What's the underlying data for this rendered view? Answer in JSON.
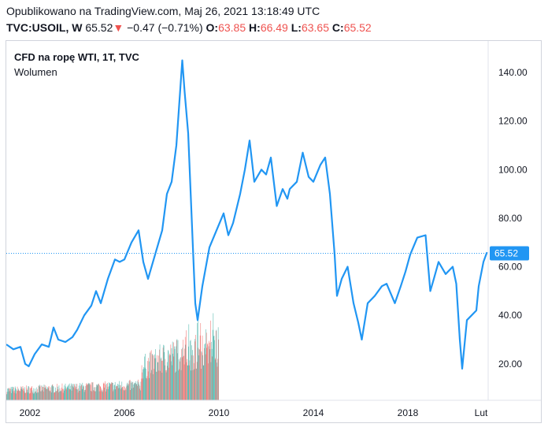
{
  "header": {
    "published_label": "Opublikowano na TradingView.com, Maj 26, 2021 13:18:49 UTC",
    "symbol": "TVC:USOIL, W",
    "last": "65.52",
    "down_arrow": "▼",
    "change": "−0.47 (−0.71%)",
    "o_label": "O:",
    "o_value": "63.85",
    "h_label": "H:",
    "h_value": "66.49",
    "l_label": "L:",
    "l_value": "63.65",
    "c_label": "C:",
    "c_value": "65.52"
  },
  "legend": {
    "title": "CFD na ropę WTI, 1T, TVC",
    "volume_label": "Wolumen"
  },
  "colors": {
    "line": "#2196f3",
    "vol_up": "#26a69a",
    "vol_down": "#ef5350",
    "last_price_bg": "#2196f3",
    "negative": "#ef5350"
  },
  "chart_data": {
    "type": "line",
    "x_tick_labels": [
      "2002",
      "2006",
      "2010",
      "2014",
      "2018",
      "Lut"
    ],
    "x_tick_values": [
      2002,
      2006,
      2010,
      2014,
      2018,
      2021.1
    ],
    "y_tick_labels": [
      "20.00",
      "40.00",
      "60.00",
      "80.00",
      "100.00",
      "120.00",
      "140.00"
    ],
    "y_tick_values": [
      20,
      40,
      60,
      80,
      100,
      120,
      140
    ],
    "xlim": [
      2001.0,
      2021.4
    ],
    "ylim": [
      5,
      153
    ],
    "last_price": 65.52,
    "last_price_label": "65.52",
    "series": [
      {
        "x": [
          2001.0,
          2001.3,
          2001.6,
          2001.8,
          2001.95,
          2002.2,
          2002.5,
          2002.8,
          2003.0,
          2003.2,
          2003.5,
          2003.8,
          2004.0,
          2004.3,
          2004.6,
          2004.8,
          2005.0,
          2005.3,
          2005.6,
          2005.8,
          2006.0,
          2006.3,
          2006.6,
          2006.8,
          2007.0,
          2007.3,
          2007.6,
          2007.8,
          2008.0,
          2008.2,
          2008.45,
          2008.55,
          2008.7,
          2008.9,
          2009.0,
          2009.1,
          2009.3,
          2009.6,
          2009.9,
          2010.2,
          2010.4,
          2010.6,
          2010.9,
          2011.1,
          2011.3,
          2011.5,
          2011.8,
          2012.0,
          2012.2,
          2012.45,
          2012.7,
          2012.9,
          2013.0,
          2013.3,
          2013.55,
          2013.8,
          2014.0,
          2014.3,
          2014.5,
          2014.7,
          2014.9,
          2015.0,
          2015.2,
          2015.45,
          2015.7,
          2015.9,
          2016.05,
          2016.3,
          2016.6,
          2016.9,
          2017.1,
          2017.45,
          2017.7,
          2017.9,
          2018.1,
          2018.4,
          2018.75,
          2018.95,
          2019.1,
          2019.3,
          2019.6,
          2019.9,
          2020.05,
          2020.2,
          2020.3,
          2020.5,
          2020.7,
          2020.9,
          2021.0,
          2021.2,
          2021.35
        ],
        "values": [
          28,
          26,
          27,
          20,
          19,
          24,
          28,
          27,
          35,
          30,
          29,
          31,
          34,
          40,
          44,
          50,
          45,
          55,
          63,
          62,
          63,
          70,
          75,
          62,
          55,
          65,
          75,
          90,
          95,
          110,
          145,
          132,
          115,
          68,
          45,
          38,
          52,
          68,
          75,
          82,
          73,
          78,
          90,
          100,
          112,
          95,
          100,
          98,
          105,
          85,
          92,
          88,
          92,
          95,
          107,
          97,
          95,
          102,
          105,
          90,
          65,
          48,
          55,
          60,
          45,
          37,
          30,
          45,
          48,
          52,
          53,
          45,
          52,
          58,
          65,
          72,
          73,
          50,
          55,
          62,
          57,
          60,
          53,
          30,
          18,
          38,
          40,
          42,
          52,
          62,
          66
        ]
      }
    ],
    "volume": {
      "xlim": [
        2001.0,
        2010.0
      ],
      "note": "volume histogram present only for 2001–2010"
    }
  }
}
